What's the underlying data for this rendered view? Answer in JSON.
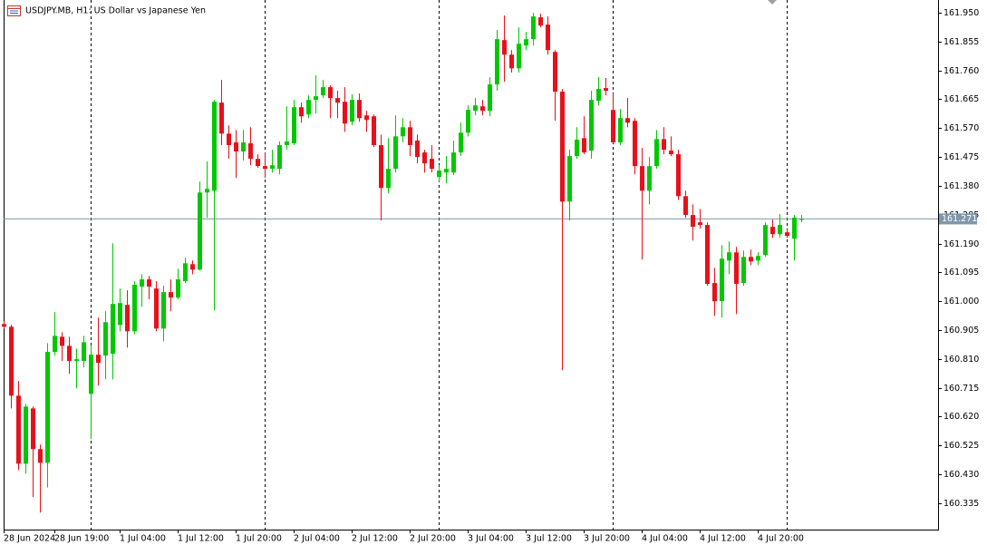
{
  "chart_data": {
    "type": "candlestick",
    "title": "USDJPY.MB, H1:  US Dollar vs Japanese Yen",
    "categories": [
      "28 Jun 2024",
      null,
      null,
      null,
      null,
      null,
      null,
      "28 Jun 19:00",
      null,
      null,
      null,
      null,
      null,
      null,
      null,
      null,
      "1 Jul 04:00",
      null,
      null,
      null,
      null,
      null,
      null,
      null,
      "1 Jul 12:00",
      null,
      null,
      null,
      null,
      null,
      null,
      null,
      "1 Jul 20:00",
      null,
      null,
      null,
      null,
      null,
      null,
      null,
      "2 Jul 04:00",
      null,
      null,
      null,
      null,
      null,
      null,
      null,
      "2 Jul 12:00",
      null,
      null,
      null,
      null,
      null,
      null,
      null,
      "2 Jul 20:00",
      null,
      null,
      null,
      null,
      null,
      null,
      null,
      "3 Jul 04:00",
      null,
      null,
      null,
      null,
      null,
      null,
      null,
      "3 Jul 12:00",
      null,
      null,
      null,
      null,
      null,
      null,
      null,
      "3 Jul 20:00",
      null,
      null,
      null,
      null,
      null,
      null,
      null,
      "4 Jul 04:00",
      null,
      null,
      null,
      null,
      null,
      null,
      null,
      "4 Jul 12:00",
      null,
      null,
      null,
      null,
      null,
      null,
      null,
      "4 Jul 20:00",
      null,
      null,
      null,
      null,
      null,
      null
    ],
    "open": [
      160.925,
      160.916,
      160.689,
      160.465,
      160.647,
      160.513,
      160.468,
      160.833,
      160.883,
      160.853,
      160.803,
      160.803,
      160.695,
      160.824,
      160.821,
      160.827,
      160.922,
      160.988,
      160.901,
      161.048,
      161.072,
      161.042,
      160.91,
      161.03,
      161.012,
      161.066,
      161.122,
      161.104,
      161.358,
      161.364,
      161.654,
      161.552,
      161.523,
      161.493,
      161.52,
      161.469,
      161.445,
      161.436,
      161.436,
      161.514,
      161.52,
      161.639,
      161.615,
      161.663,
      161.678,
      161.705,
      161.669,
      161.657,
      161.591,
      161.663,
      161.612,
      161.609,
      161.514,
      161.373,
      161.436,
      161.543,
      161.573,
      161.529,
      161.49,
      161.469,
      161.409,
      161.424,
      161.424,
      161.49,
      161.555,
      161.627,
      161.642,
      161.627,
      161.714,
      161.86,
      161.812,
      161.767,
      161.842,
      161.863,
      161.935,
      161.911,
      161.821,
      161.69,
      161.328,
      161.478,
      161.537,
      161.496,
      161.66,
      161.702,
      161.63,
      161.523,
      161.603,
      161.594,
      161.445,
      161.364,
      161.445,
      161.534,
      161.496,
      161.484,
      161.346,
      161.284,
      161.26,
      161.251,
      161.06,
      161.0,
      161.134,
      161.161,
      161.06,
      161.146,
      161.134,
      161.152,
      161.245,
      161.221,
      161.227,
      161.206,
      161.269
    ],
    "high": [
      160.934,
      160.922,
      160.737,
      160.662,
      160.653,
      160.528,
      160.862,
      160.964,
      160.898,
      160.883,
      160.844,
      160.886,
      160.856,
      160.946,
      160.967,
      161.191,
      161.042,
      161.036,
      161.066,
      161.089,
      161.083,
      161.066,
      161.051,
      161.072,
      161.107,
      161.143,
      161.134,
      161.394,
      161.46,
      161.663,
      161.729,
      161.579,
      161.564,
      161.564,
      161.573,
      161.484,
      161.49,
      161.499,
      161.526,
      161.642,
      161.663,
      161.654,
      161.678,
      161.744,
      161.729,
      161.711,
      161.693,
      161.705,
      161.681,
      161.684,
      161.627,
      161.615,
      161.549,
      161.537,
      161.612,
      161.603,
      161.594,
      161.549,
      161.499,
      161.514,
      161.448,
      161.478,
      161.529,
      161.588,
      161.645,
      161.669,
      161.663,
      161.738,
      161.893,
      161.941,
      161.827,
      161.902,
      161.887,
      161.95,
      161.947,
      161.938,
      161.827,
      161.699,
      161.499,
      161.573,
      161.609,
      161.693,
      161.738,
      161.735,
      161.684,
      161.633,
      161.669,
      161.603,
      161.505,
      161.475,
      161.564,
      161.573,
      161.543,
      161.499,
      161.364,
      161.319,
      161.304,
      161.26,
      161.11,
      161.185,
      161.197,
      161.179,
      161.167,
      161.17,
      161.161,
      161.26,
      161.269,
      161.287,
      161.236,
      161.284,
      161.284
    ],
    "low": [
      160.91,
      160.647,
      160.444,
      160.432,
      160.355,
      160.304,
      160.387,
      160.821,
      160.803,
      160.761,
      160.713,
      160.782,
      160.546,
      160.722,
      160.743,
      160.743,
      160.901,
      160.847,
      160.892,
      160.982,
      161.006,
      160.901,
      160.868,
      160.967,
      161.006,
      161.06,
      161.089,
      161.101,
      161.275,
      160.97,
      161.514,
      161.469,
      161.406,
      161.463,
      161.448,
      161.439,
      161.406,
      161.424,
      161.418,
      161.499,
      161.514,
      161.588,
      161.603,
      161.618,
      161.669,
      161.603,
      161.603,
      161.558,
      161.579,
      161.591,
      161.558,
      161.508,
      161.266,
      161.355,
      161.424,
      161.523,
      161.478,
      161.454,
      161.424,
      161.424,
      161.394,
      161.388,
      161.415,
      161.478,
      161.543,
      161.612,
      161.612,
      161.609,
      161.693,
      161.723,
      161.753,
      161.753,
      161.827,
      161.842,
      161.902,
      161.812,
      161.594,
      160.773,
      161.266,
      161.469,
      161.484,
      161.469,
      161.645,
      161.678,
      161.52,
      161.514,
      161.573,
      161.418,
      161.137,
      161.319,
      161.436,
      161.484,
      161.478,
      161.334,
      161.275,
      161.2,
      161.239,
      161.051,
      160.952,
      160.946,
      161.089,
      160.958,
      161.051,
      161.119,
      161.119,
      161.146,
      161.209,
      161.209,
      161.209,
      161.134,
      161.26
    ],
    "close": [
      160.916,
      160.689,
      160.465,
      160.653,
      160.513,
      160.468,
      160.833,
      160.886,
      160.853,
      160.803,
      160.809,
      160.865,
      160.824,
      160.797,
      160.931,
      160.991,
      160.994,
      160.901,
      161.054,
      161.072,
      161.048,
      160.91,
      161.03,
      161.012,
      161.072,
      161.125,
      161.104,
      161.358,
      161.37,
      161.657,
      161.552,
      161.514,
      161.493,
      161.523,
      161.469,
      161.445,
      161.436,
      161.448,
      161.514,
      161.526,
      161.639,
      161.609,
      161.663,
      161.675,
      161.705,
      161.669,
      161.654,
      161.585,
      161.663,
      161.603,
      161.597,
      161.514,
      161.373,
      161.436,
      161.543,
      161.573,
      161.514,
      161.475,
      161.454,
      161.436,
      161.43,
      161.436,
      161.49,
      161.555,
      161.63,
      161.645,
      161.627,
      161.714,
      161.863,
      161.812,
      161.767,
      161.848,
      161.863,
      161.938,
      161.908,
      161.827,
      161.69,
      161.328,
      161.478,
      161.532,
      161.49,
      161.663,
      161.699,
      161.693,
      161.523,
      161.603,
      161.588,
      161.445,
      161.364,
      161.445,
      161.534,
      161.499,
      161.484,
      161.346,
      161.284,
      161.245,
      161.251,
      161.057,
      161.0,
      161.14,
      161.161,
      161.057,
      161.146,
      161.131,
      161.149,
      161.251,
      161.221,
      161.251,
      161.215,
      161.275,
      161.271
    ],
    "up_color": "#00c800",
    "down_color": "#e8101a",
    "ylim": [
      160.248,
      161.992
    ],
    "yticks": [
      {
        "value": 161.95,
        "label": "161.950"
      },
      161.855,
      {
        "value": 161.76,
        "label": "161.760"
      },
      161.665,
      {
        "value": 161.57,
        "label": "161.570"
      },
      161.475,
      {
        "value": 161.38,
        "label": "161.380"
      },
      161.285,
      {
        "value": 161.19,
        "label": "161.190"
      },
      161.095,
      {
        "value": 161.0,
        "label": "161.000"
      },
      160.905,
      {
        "value": 160.81,
        "label": "160.810"
      },
      160.715,
      {
        "value": 160.62,
        "label": "160.620"
      },
      160.525,
      {
        "value": 160.43,
        "label": "160.430"
      },
      160.335
    ],
    "current_price": 161.271,
    "current_price_color": "#7f96ab",
    "period_separators": true
  }
}
